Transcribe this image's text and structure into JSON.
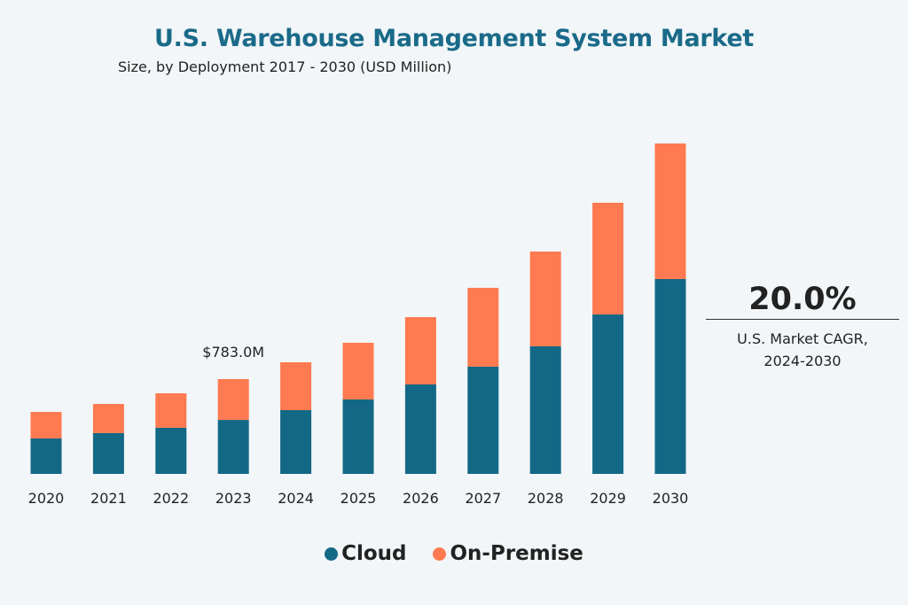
{
  "chart_data": {
    "type": "bar",
    "stacked": true,
    "title": "U.S. Warehouse Management System Market",
    "subtitle": "Size, by Deployment 2017 - 2030 (USD Million)",
    "categories": [
      "2020",
      "2021",
      "2022",
      "2023",
      "2024",
      "2025",
      "2026",
      "2027",
      "2028",
      "2029",
      "2030"
    ],
    "series": [
      {
        "name": "Cloud",
        "color": "#136886",
        "values": [
          293,
          337,
          381,
          446,
          527,
          615,
          739,
          886,
          1054,
          1317,
          1610
        ]
      },
      {
        "name": "On-Premise",
        "color": "#ff7a50",
        "values": [
          219,
          241,
          285,
          337,
          395,
          468,
          556,
          651,
          783,
          923,
          1120
        ]
      }
    ],
    "annotations": [
      {
        "category": "2023",
        "text": "$783.0M"
      }
    ],
    "ylim": [
      0,
      2800
    ],
    "grid": false,
    "legend": "bottom"
  },
  "cagr": {
    "value": "20.0%",
    "label_line1": "U.S. Market CAGR,",
    "label_line2": "2024-2030"
  },
  "legend": {
    "cloud": "Cloud",
    "on_premise": "On-Premise"
  }
}
